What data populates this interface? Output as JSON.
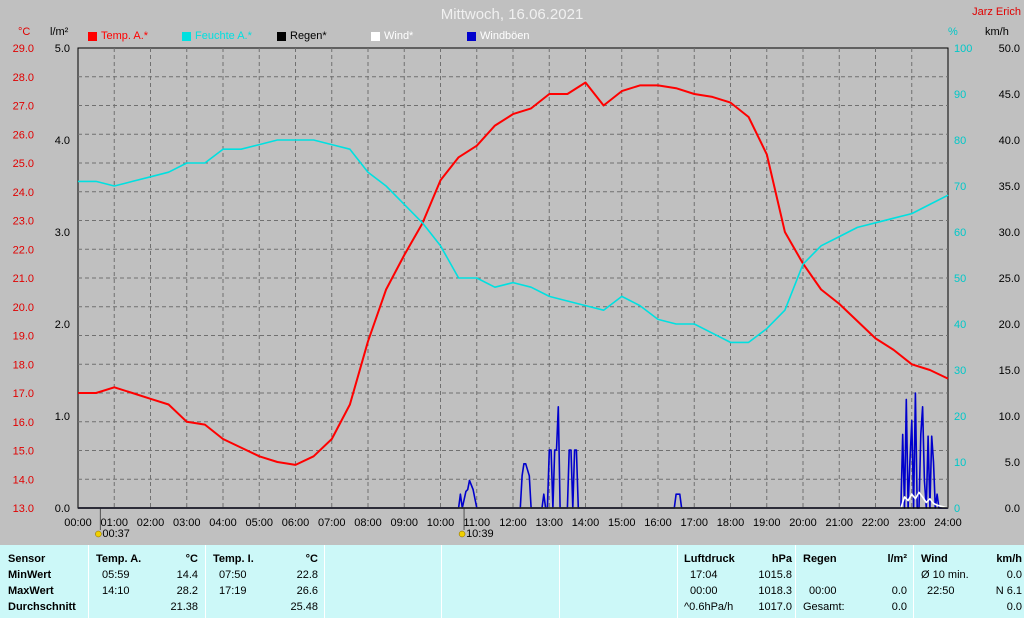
{
  "header": {
    "title": "Mittwoch, 16.06.2021",
    "author": "Jarz Erich",
    "unit_temp": "°C",
    "unit_rain": "l/m²",
    "unit_hum": "%",
    "unit_wind": "km/h"
  },
  "legend": [
    {
      "label": "Temp. A.*",
      "color": "#ff0000"
    },
    {
      "label": "Feuchte A.*",
      "color": "#00e0e0"
    },
    {
      "label": "Regen*",
      "color": "#000000"
    },
    {
      "label": "Wind*",
      "color": "#ffffff"
    },
    {
      "label": "Windböen",
      "color": "#0000cc"
    }
  ],
  "markers": [
    {
      "label": "00:37",
      "hour": 0.617
    },
    {
      "label": "10:39",
      "hour": 10.65
    }
  ],
  "chart_data": {
    "type": "line",
    "title": "Mittwoch, 16.06.2021",
    "x_ticks": [
      "00:00",
      "01:00",
      "02:00",
      "03:00",
      "04:00",
      "05:00",
      "06:00",
      "07:00",
      "08:00",
      "09:00",
      "10:00",
      "11:00",
      "12:00",
      "13:00",
      "14:00",
      "15:00",
      "16:00",
      "17:00",
      "18:00",
      "19:00",
      "20:00",
      "21:00",
      "22:00",
      "23:00",
      "24:00"
    ],
    "xlim": [
      0,
      24
    ],
    "axes": {
      "temp": {
        "unit": "°C",
        "range": [
          13,
          29
        ],
        "ticks": [
          "29.0",
          "28.0",
          "27.0",
          "26.0",
          "25.0",
          "24.0",
          "23.0",
          "22.0",
          "21.0",
          "20.0",
          "19.0",
          "18.0",
          "17.0",
          "16.0",
          "15.0",
          "14.0",
          "13.0"
        ]
      },
      "rain": {
        "unit": "l/m²",
        "range": [
          0,
          5
        ],
        "ticks": [
          "5.0",
          "4.0",
          "3.0",
          "2.0",
          "1.0",
          "0.0"
        ]
      },
      "humidity": {
        "unit": "%",
        "range": [
          0,
          100
        ],
        "ticks": [
          "100",
          "90",
          "80",
          "70",
          "60",
          "50",
          "40",
          "30",
          "20",
          "10",
          "0"
        ]
      },
      "wind": {
        "unit": "km/h",
        "range": [
          0,
          50
        ],
        "ticks": [
          "50.0",
          "45.0",
          "40.0",
          "35.0",
          "30.0",
          "25.0",
          "20.0",
          "15.0",
          "10.0",
          "5.0",
          "0.0"
        ]
      }
    },
    "grid": true,
    "series": [
      {
        "name": "Temp. A.*",
        "axis": "temp",
        "color": "#ff0000",
        "x": [
          0,
          0.5,
          1,
          1.5,
          2,
          2.5,
          3,
          3.5,
          4,
          4.5,
          5,
          5.5,
          6,
          6.5,
          7,
          7.5,
          8,
          8.5,
          9,
          9.5,
          10,
          10.5,
          11,
          11.5,
          12,
          12.5,
          13,
          13.5,
          14,
          14.5,
          15,
          15.5,
          16,
          16.5,
          17,
          17.5,
          18,
          18.5,
          19,
          19.5,
          20,
          20.5,
          21,
          21.5,
          22,
          22.5,
          23,
          23.5,
          24
        ],
        "y": [
          17.0,
          17.0,
          17.2,
          17.0,
          16.8,
          16.6,
          16.0,
          15.9,
          15.4,
          15.1,
          14.8,
          14.6,
          14.5,
          14.8,
          15.4,
          16.6,
          18.8,
          20.6,
          21.8,
          22.9,
          24.4,
          25.2,
          25.6,
          26.3,
          26.7,
          26.9,
          27.4,
          27.4,
          27.8,
          27.0,
          27.5,
          27.7,
          27.7,
          27.6,
          27.4,
          27.3,
          27.1,
          26.6,
          25.3,
          22.6,
          21.5,
          20.6,
          20.1,
          19.5,
          18.9,
          18.5,
          18.0,
          17.8,
          17.5
        ]
      },
      {
        "name": "Feuchte A.*",
        "axis": "humidity",
        "color": "#00e0e0",
        "x": [
          0,
          0.5,
          1,
          1.5,
          2,
          2.5,
          3,
          3.5,
          4,
          4.5,
          5,
          5.5,
          6,
          6.5,
          7,
          7.5,
          8,
          8.5,
          9,
          9.5,
          10,
          10.5,
          11,
          11.5,
          12,
          12.5,
          13,
          13.5,
          14,
          14.5,
          15,
          15.5,
          16,
          16.5,
          17,
          17.5,
          18,
          18.5,
          19,
          19.5,
          20,
          20.5,
          21,
          21.5,
          22,
          22.5,
          23,
          23.5,
          24
        ],
        "y": [
          71,
          71,
          70,
          71,
          72,
          73,
          75,
          75,
          78,
          78,
          79,
          80,
          80,
          80,
          79,
          78,
          73,
          70,
          66,
          62,
          57,
          50,
          50,
          48,
          49,
          48,
          46,
          45,
          44,
          43,
          46,
          44,
          41,
          40,
          40,
          38,
          36,
          36,
          39,
          43,
          53,
          57,
          59,
          61,
          62,
          63,
          64,
          66,
          68
        ]
      },
      {
        "name": "Windböen",
        "axis": "wind",
        "color": "#0000cc",
        "x": [
          0,
          10.5,
          10.55,
          10.6,
          10.7,
          10.75,
          10.8,
          10.9,
          11.0,
          11.1,
          11.2,
          12.2,
          12.25,
          12.3,
          12.35,
          12.45,
          12.5,
          12.6,
          12.8,
          12.85,
          12.9,
          12.95,
          13.0,
          13.05,
          13.1,
          13.15,
          13.2,
          13.25,
          13.3,
          13.35,
          13.4,
          13.45,
          13.5,
          13.55,
          13.6,
          13.65,
          13.7,
          13.75,
          13.8,
          13.85,
          13.9,
          16.45,
          16.5,
          16.6,
          16.65,
          22.7,
          22.75,
          22.8,
          22.85,
          22.9,
          22.95,
          23.0,
          23.05,
          23.1,
          23.15,
          23.2,
          23.25,
          23.3,
          23.35,
          23.4,
          23.45,
          23.5,
          23.55,
          23.6,
          23.65,
          23.7,
          23.75,
          23.8,
          23.85,
          23.9,
          24.0
        ],
        "y": [
          0,
          0,
          1.5,
          0,
          1.8,
          2.0,
          3.0,
          2.0,
          0,
          0,
          0,
          0,
          3.5,
          4.8,
          4.8,
          3.5,
          0,
          0,
          0,
          1.5,
          0,
          0,
          6.3,
          6.3,
          0,
          6.3,
          6.3,
          11.0,
          0,
          0,
          0,
          0,
          0,
          6.3,
          6.3,
          0,
          6.3,
          6.3,
          0,
          0,
          0,
          0,
          1.5,
          1.5,
          0,
          0,
          8.0,
          0,
          11.8,
          0,
          5.0,
          9.5,
          0,
          12.5,
          0,
          0,
          8.0,
          11.0,
          3.0,
          0,
          7.8,
          0,
          7.8,
          5.0,
          0,
          1.5,
          0,
          0,
          0,
          0,
          0
        ]
      },
      {
        "name": "Wind*",
        "axis": "wind",
        "color": "#ffffff",
        "x": [
          0,
          22.7,
          22.8,
          22.9,
          23.0,
          23.1,
          23.2,
          23.3,
          23.4,
          23.5,
          23.6,
          23.7,
          23.8,
          24.0
        ],
        "y": [
          0,
          0,
          1.2,
          0.8,
          1.5,
          1.0,
          1.7,
          1.2,
          0.6,
          1.0,
          0.5,
          0.3,
          0.2,
          0
        ]
      },
      {
        "name": "Regen*",
        "axis": "rain",
        "color": "#000000",
        "x": [
          0,
          24
        ],
        "y": [
          0,
          0
        ]
      }
    ]
  },
  "stats": {
    "sensor": {
      "h1": "Sensor",
      "r1": "MinWert",
      "r2": "MaxWert",
      "r3": "Durchschnitt"
    },
    "temp_a": {
      "h": "Temp. A.",
      "u": "°C",
      "min_t": "05:59",
      "min_v": "14.4",
      "max_t": "14:10",
      "max_v": "28.2",
      "avg_v": "21.38"
    },
    "temp_i": {
      "h": "Temp. I.",
      "u": "°C",
      "min_t": "07:50",
      "min_v": "22.8",
      "max_t": "17:19",
      "max_v": "26.6",
      "avg_v": "25.48"
    },
    "pressure": {
      "h": "Luftdruck",
      "u": "hPa",
      "min_t": "17:04",
      "min_v": "1015.8",
      "max_t": "00:00",
      "max_v": "1018.3",
      "trend": "^0.6hPa/h",
      "avg_v": "1017.0"
    },
    "rain": {
      "h": "Regen",
      "u": "l/m²",
      "t": "00:00",
      "v": "0.0",
      "total_l": "Gesamt:",
      "total_v": "0.0"
    },
    "wind": {
      "h": "Wind",
      "u": "km/h",
      "avg_l": "Ø 10 min.",
      "avg_v": "0.0",
      "max_t": "22:50",
      "max_v": "N 6.1",
      "last_v": "0.0"
    }
  }
}
